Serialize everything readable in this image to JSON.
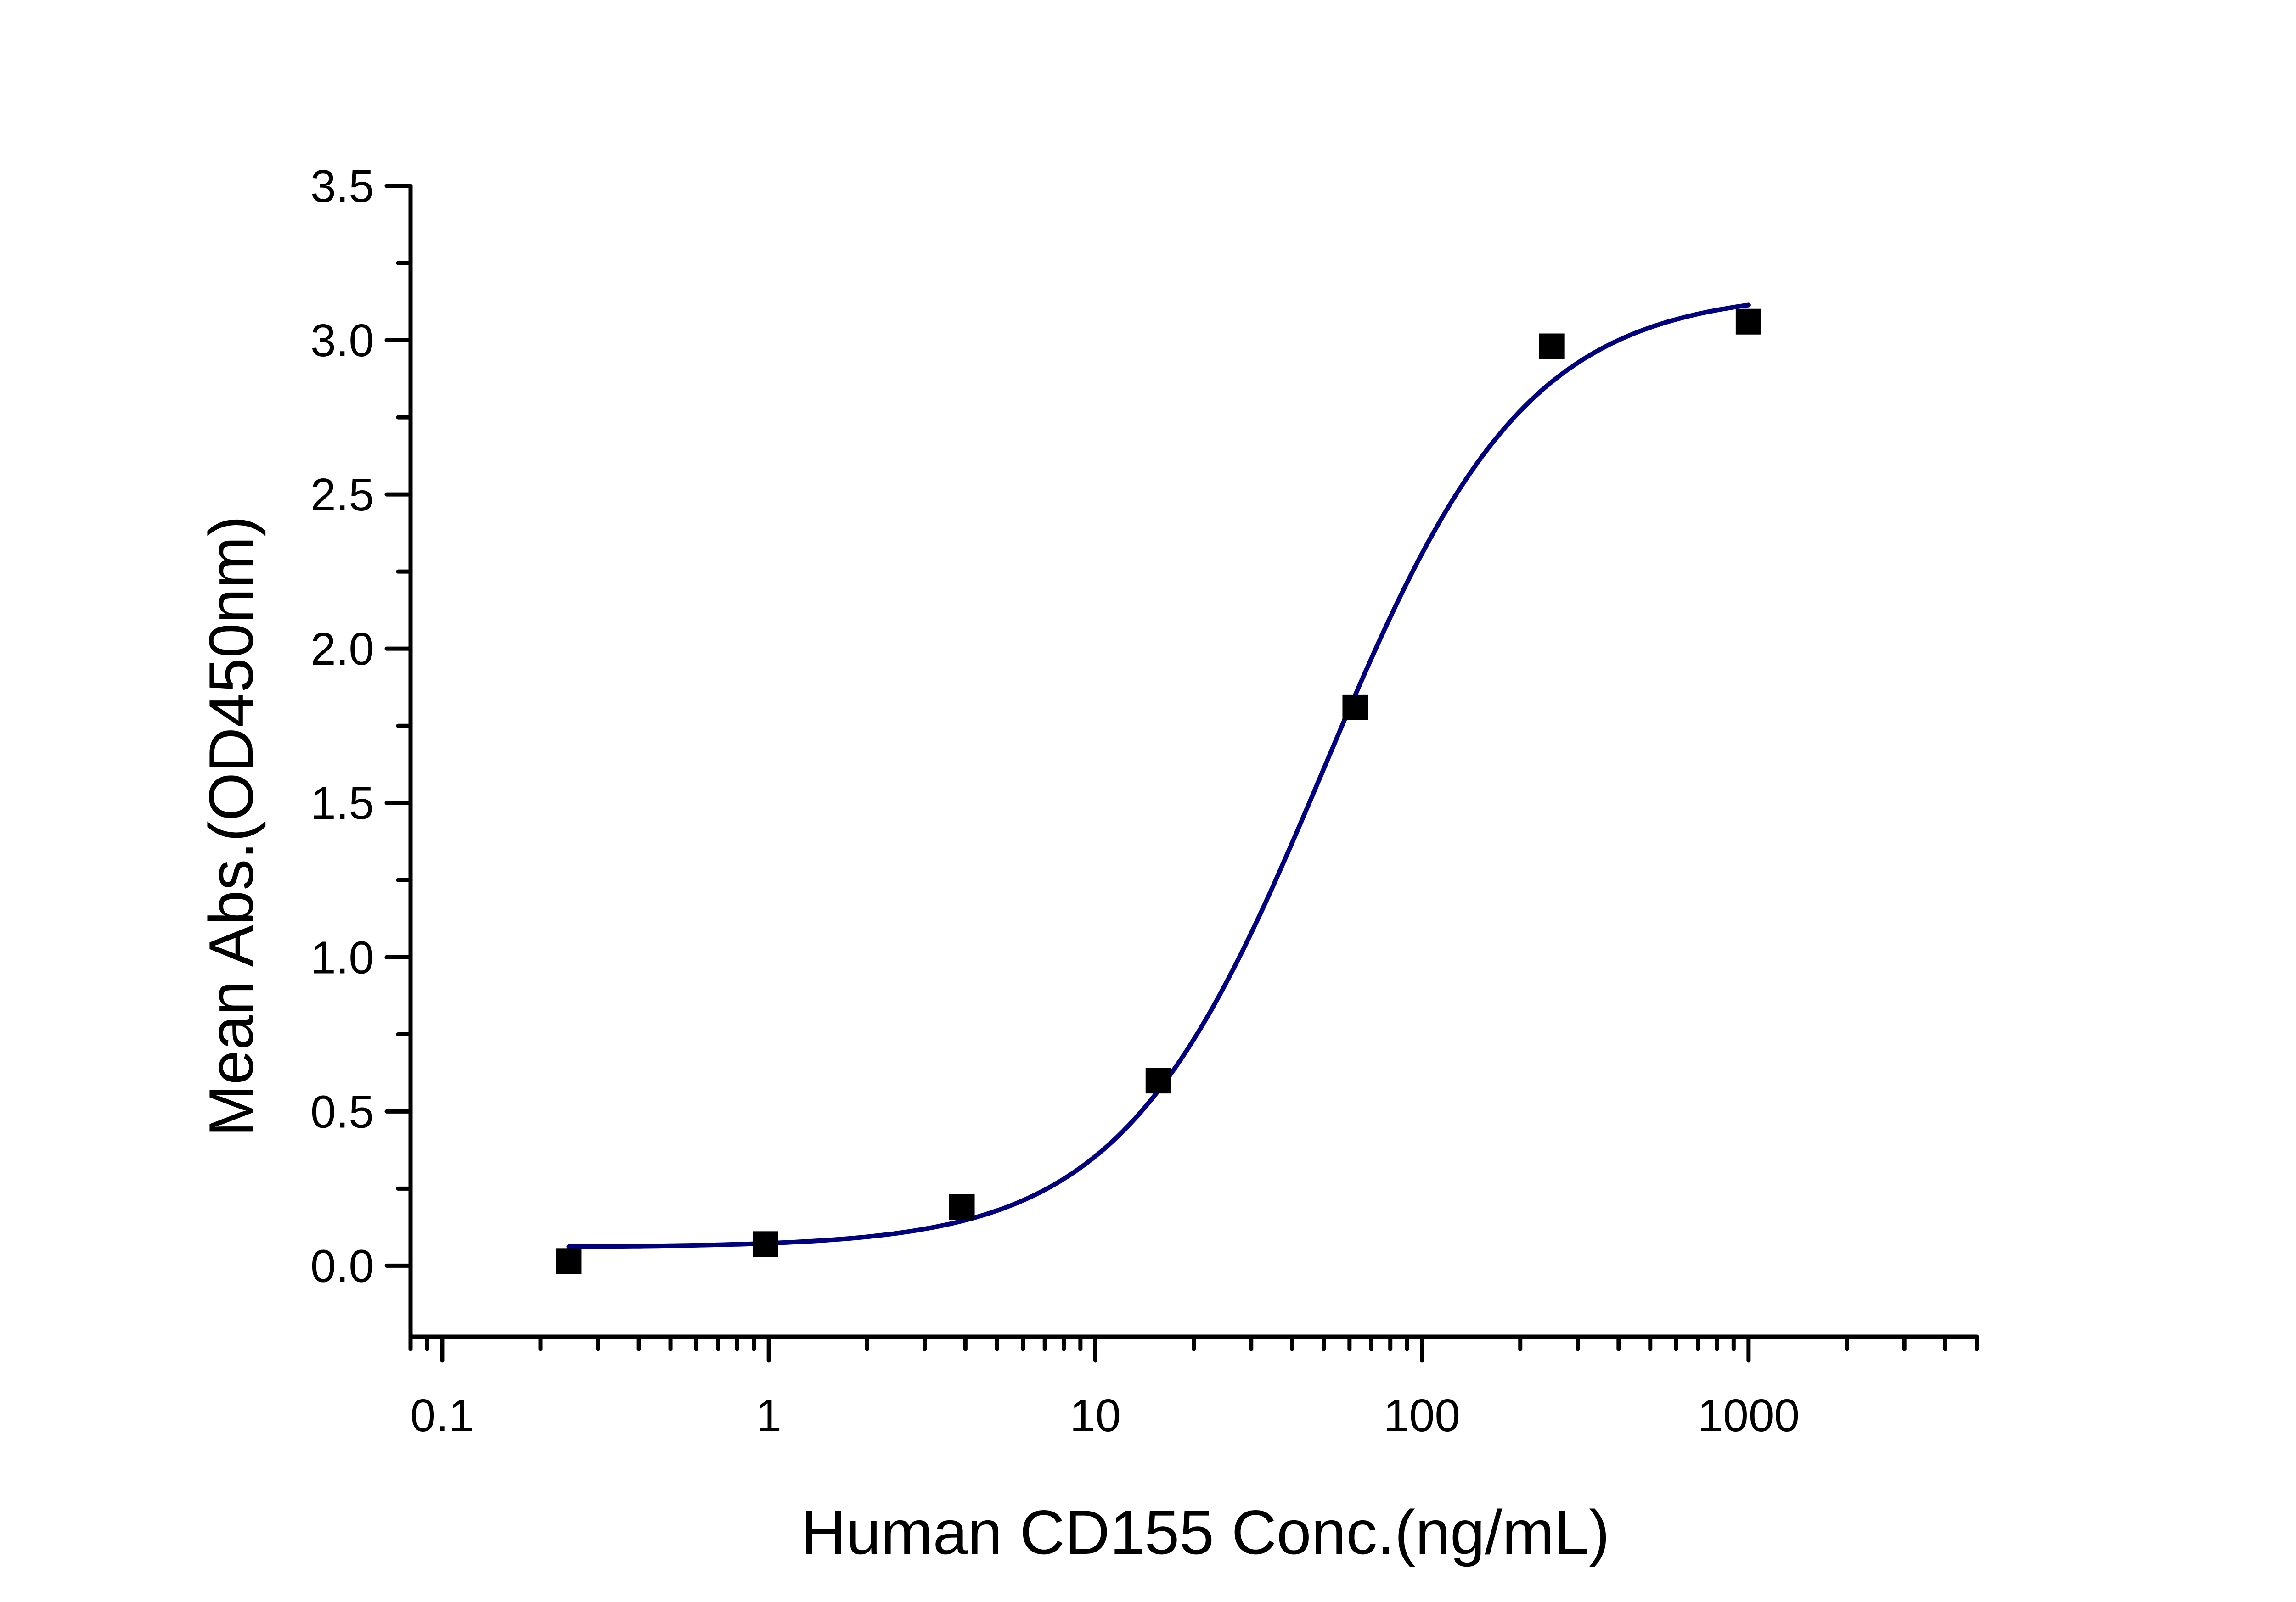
{
  "chart_data": {
    "type": "scatter",
    "title": "",
    "xlabel": "Human CD155 Conc.(ng/mL)",
    "ylabel": "Mean Abs.(OD450nm)",
    "x_scale": "log",
    "xlim": [
      0.08,
      5000
    ],
    "ylim": [
      -0.23,
      3.5
    ],
    "x_ticks": [
      0.1,
      1,
      10,
      100,
      1000
    ],
    "x_tick_labels": [
      "0.1",
      "1",
      "10",
      "100",
      "1000"
    ],
    "y_ticks": [
      0.0,
      0.5,
      1.0,
      1.5,
      2.0,
      2.5,
      3.0,
      3.5
    ],
    "y_tick_labels": [
      "0.0",
      "0.5",
      "1.0",
      "1.5",
      "2.0",
      "2.5",
      "3.0",
      "3.5"
    ],
    "grid": false,
    "series": [
      {
        "marker": "square",
        "color": "#000000",
        "x": [
          0.244,
          0.977,
          3.9,
          15.6,
          62.5,
          250,
          1000
        ],
        "y": [
          0.015,
          0.07,
          0.19,
          0.6,
          1.81,
          2.98,
          3.06
        ]
      }
    ],
    "fit_curve": {
      "model": "4PL",
      "color": "#000080",
      "bottom": 0.06,
      "top": 3.16,
      "ec50": 50,
      "hill": 1.4,
      "x_range": [
        0.244,
        1000
      ]
    }
  }
}
